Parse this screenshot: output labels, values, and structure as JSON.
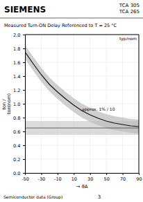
{
  "chart_data": {
    "type": "line",
    "title": "SIEMENS",
    "subtitle": "Measured Turn-ON Delay Referenced to T = 25 °C",
    "x_label": "→  ϑA",
    "y_label": "ton / \nton(nom)",
    "x": [
      -50,
      -40,
      -30,
      -20,
      -10,
      0,
      10,
      20,
      30,
      40,
      50,
      60,
      70,
      80,
      90
    ],
    "values": [
      1.75,
      1.58,
      1.42,
      1.28,
      1.17,
      1.07,
      0.98,
      0.9,
      0.84,
      0.79,
      0.75,
      0.72,
      0.7,
      0.68,
      0.67
    ],
    "color": "#111111",
    "band": {
      "upper": [
        1.85,
        1.68,
        1.52,
        1.38,
        1.27,
        1.17,
        1.08,
        1.0,
        0.94,
        0.89,
        0.85,
        0.82,
        0.8,
        0.78,
        0.77
      ],
      "lower": [
        1.65,
        1.48,
        1.32,
        1.18,
        1.07,
        0.97,
        0.88,
        0.8,
        0.74,
        0.69,
        0.65,
        0.62,
        0.6,
        0.58,
        0.57
      ],
      "color": "#bbbbbb"
    },
    "span": {
      "low": 0.55,
      "high": 0.75,
      "color": "#cccccc"
    },
    "hline": 0.65,
    "annotations": [
      {
        "text": "approx. 1% / 10",
        "x": 20,
        "y": 0.88
      },
      {
        "text": "typ/nom"
      }
    ],
    "xlim": [
      -50,
      90
    ],
    "ylim": [
      0,
      2.0
    ],
    "xticks": [
      -50,
      -30,
      -10,
      10,
      30,
      50,
      70,
      90
    ],
    "yticks": [
      {
        "value": 0,
        "label": "0.0"
      },
      0.2,
      0.4,
      0.6,
      0.8,
      {
        "value": 1.0,
        "label": "1.0"
      },
      1.2,
      1.4,
      1.6,
      1.8,
      {
        "value": 2.0,
        "label": "2.0"
      }
    ],
    "grid": true
  },
  "header": [
    "TCA 305",
    "TCA 265"
  ],
  "footer": [
    "Semiconductor data (Group)",
    "3"
  ]
}
